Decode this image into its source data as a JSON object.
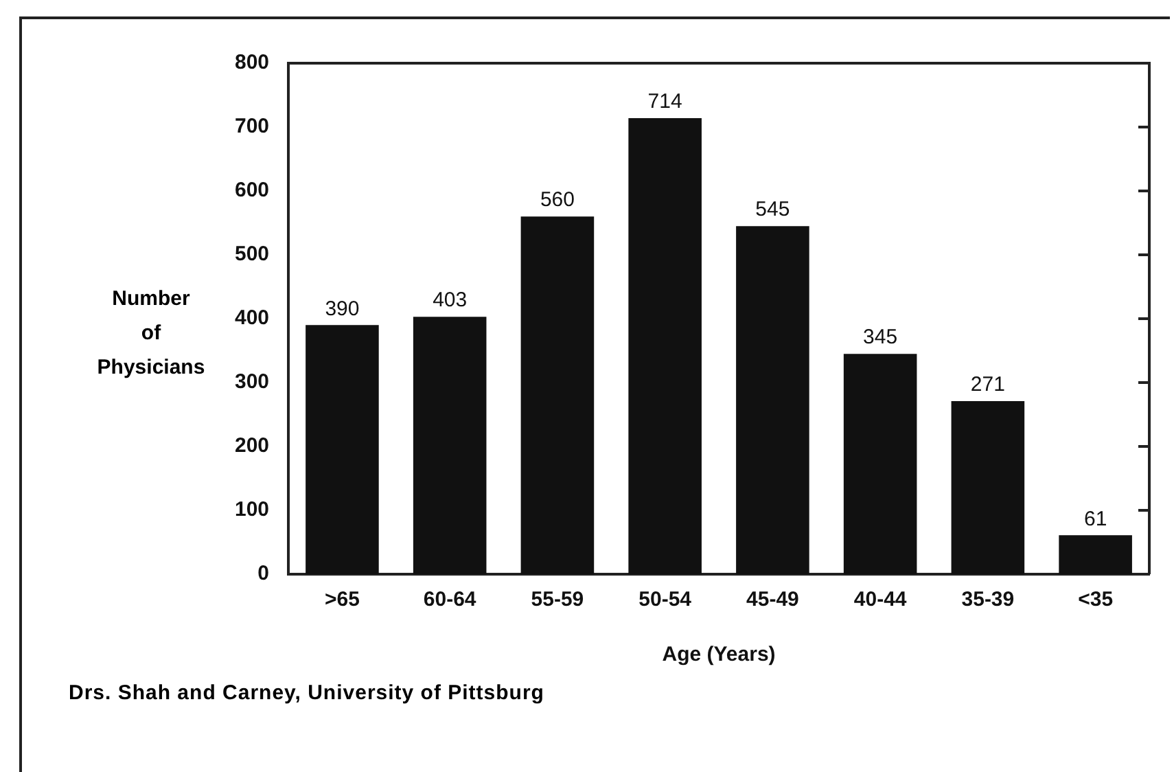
{
  "chart_data": {
    "type": "bar",
    "xlabel": "Age (Years)",
    "ylabel": "Number of Physicians",
    "categories": [
      ">65",
      "60-64",
      "55-59",
      "50-54",
      "45-49",
      "40-44",
      "35-39",
      "<35"
    ],
    "values": [
      390,
      403,
      560,
      714,
      545,
      345,
      271,
      61
    ],
    "color": "#111111",
    "data_labels": true,
    "ylim": [
      0,
      800
    ],
    "yticks": [
      0,
      100,
      200,
      300,
      400,
      500,
      600,
      700,
      800
    ],
    "grid": false,
    "legend": false,
    "annotations": [
      "Drs. Shah and Carney, University of Pittsburg"
    ]
  }
}
